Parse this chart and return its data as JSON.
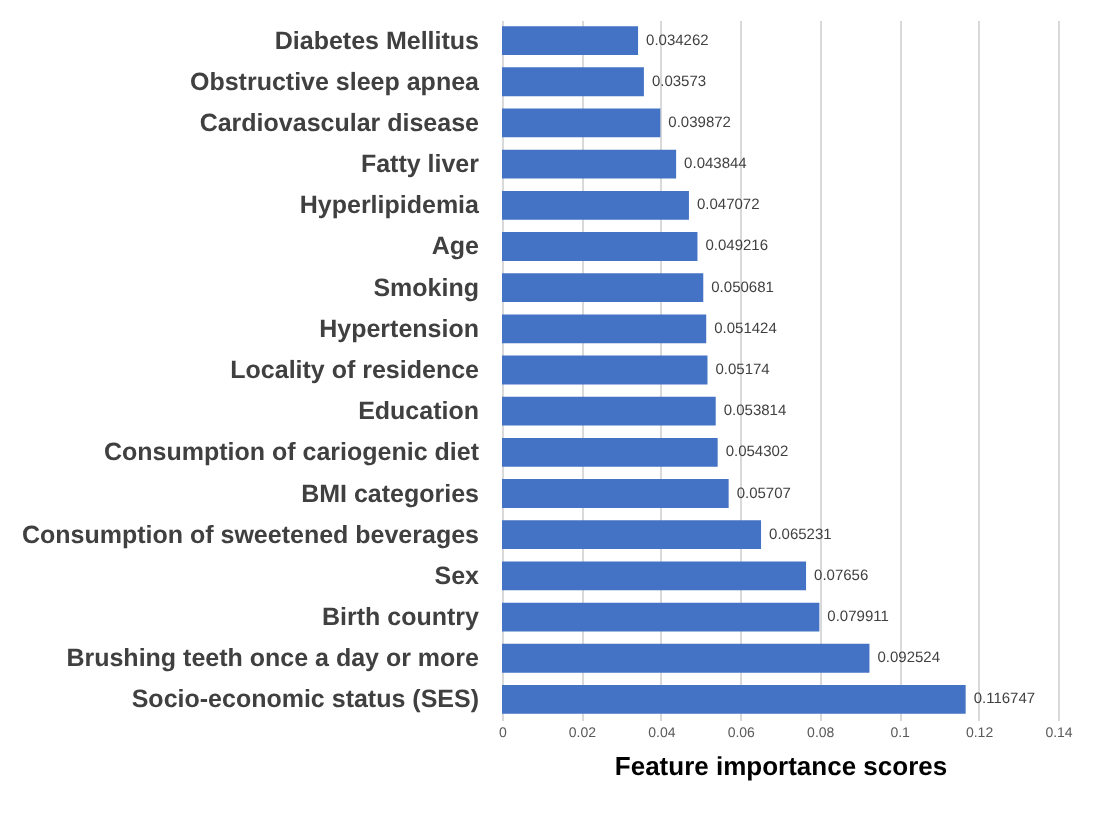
{
  "chart_data": {
    "type": "bar",
    "orientation": "horizontal",
    "xlabel": "Feature importance scores",
    "categories": [
      "Diabetes Mellitus",
      "Obstructive sleep apnea",
      "Cardiovascular disease",
      "Fatty liver",
      "Hyperlipidemia",
      "Age",
      "Smoking",
      "Hypertension",
      "Locality of residence",
      "Education",
      "Consumption of cariogenic diet",
      "BMI categories",
      "Consumption of sweetened beverages",
      "Sex",
      "Birth country",
      "Brushing teeth once a day or more",
      "Socio-economic status (SES)"
    ],
    "values": [
      0.034262,
      0.03573,
      0.039872,
      0.043844,
      0.047072,
      0.049216,
      0.050681,
      0.051424,
      0.05174,
      0.053814,
      0.054302,
      0.05707,
      0.065231,
      0.07656,
      0.079911,
      0.092524,
      0.116747
    ],
    "color": "#4472c4",
    "xlim": [
      0,
      0.14
    ],
    "xticks": [
      0,
      0.02,
      0.04,
      0.06,
      0.08,
      0.1,
      0.12,
      0.14
    ],
    "grid": true,
    "data_labels": true
  }
}
